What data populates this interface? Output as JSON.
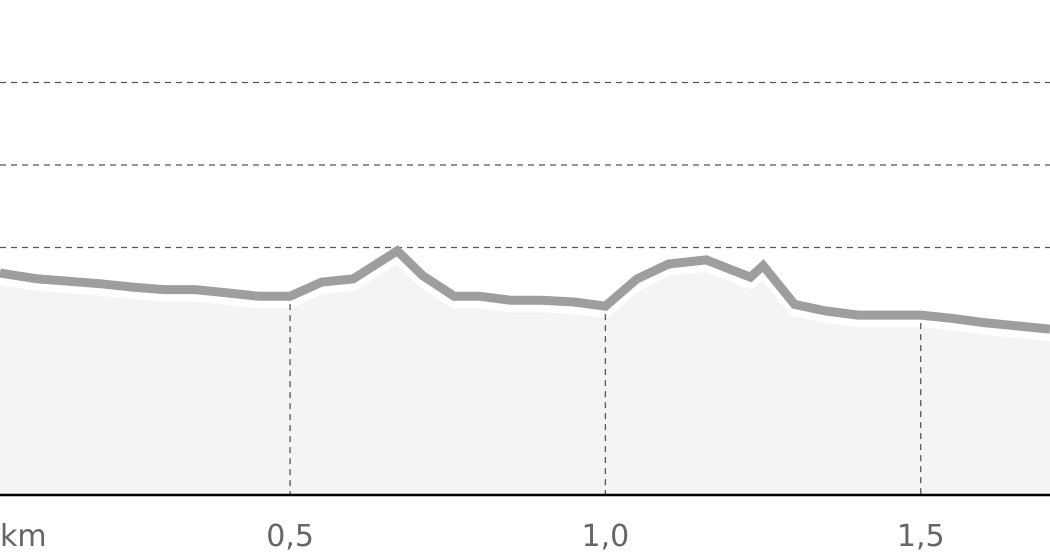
{
  "chart_data": {
    "type": "area",
    "title": "",
    "xlabel": "",
    "ylabel": "",
    "x_unit_label": "km",
    "x_ticks": [
      {
        "value": 0.5,
        "label": "0,5"
      },
      {
        "value": 1.0,
        "label": "1,0"
      },
      {
        "value": 1.5,
        "label": "1,5"
      }
    ],
    "xlim": [
      0.04,
      1.705
    ],
    "ylim": [
      0,
      6
    ],
    "y_gridlines": [
      1,
      2,
      3,
      4,
      5
    ],
    "grid": true,
    "series": [
      {
        "x": [
          0.04,
          0.1,
          0.15,
          0.2,
          0.25,
          0.3,
          0.35,
          0.4,
          0.45,
          0.5,
          0.55,
          0.6,
          0.67,
          0.71,
          0.76,
          0.8,
          0.85,
          0.9,
          0.95,
          1.0,
          1.05,
          1.1,
          1.16,
          1.2,
          1.23,
          1.25,
          1.3,
          1.35,
          1.4,
          1.45,
          1.5,
          1.55,
          1.6,
          1.705
        ],
        "y": [
          2.69,
          2.62,
          2.59,
          2.56,
          2.52,
          2.49,
          2.49,
          2.45,
          2.41,
          2.41,
          2.58,
          2.62,
          2.96,
          2.66,
          2.41,
          2.41,
          2.36,
          2.36,
          2.34,
          2.29,
          2.62,
          2.8,
          2.85,
          2.73,
          2.64,
          2.78,
          2.31,
          2.23,
          2.18,
          2.18,
          2.18,
          2.14,
          2.09,
          2.01
        ]
      }
    ],
    "colors": {
      "line": "#9e9e9e",
      "fill": "#f4f4f4",
      "grid": "#555555",
      "axis": "#000000",
      "tick_text": "#666666"
    }
  }
}
